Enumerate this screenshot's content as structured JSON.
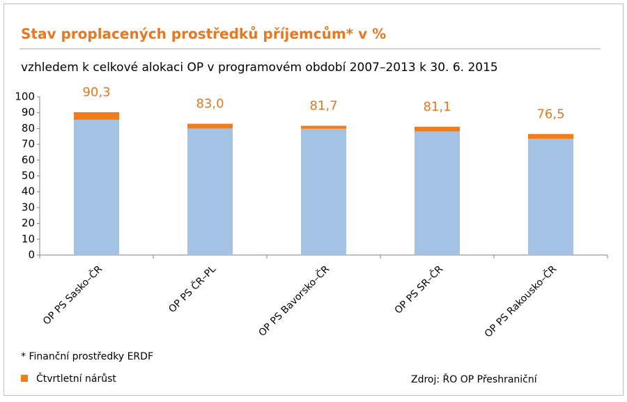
{
  "chart_data": {
    "type": "stacked-bar",
    "title": "Stav proplacených prostředků příjemcům* v %",
    "subtitle": "vzhledem k celkové alokaci OP v programovém období 2007–2013 k 30. 6. 2015",
    "categories": [
      "OP PS Sasko–ČR",
      "OP PS ČR–PL",
      "OP PS Bavorsko–ČR",
      "OP PS SR–ČR",
      "OP PS Rakousko–ČR"
    ],
    "series": [
      {
        "color": "#a4c2e4",
        "values": [
          85.5,
          80.0,
          79.8,
          78.2,
          73.5
        ]
      },
      {
        "name": "Čtvrtletní nárůst",
        "color": "#f07c1c",
        "values": [
          4.8,
          3.0,
          1.9,
          2.9,
          3.0
        ]
      }
    ],
    "totals": [
      90.3,
      83.0,
      81.7,
      81.1,
      76.5
    ],
    "total_labels": [
      "90,3",
      "83,0",
      "81,7",
      "81,1",
      "76,5"
    ],
    "total_label_color": "#e87722",
    "ylim": [
      0,
      100
    ],
    "yticks": [
      0,
      10,
      20,
      30,
      40,
      50,
      60,
      70,
      80,
      90,
      100
    ],
    "footnote": "* Finanční prostředky ERDF",
    "source": "Zdroj: ŘO OP Přeshraniční"
  }
}
